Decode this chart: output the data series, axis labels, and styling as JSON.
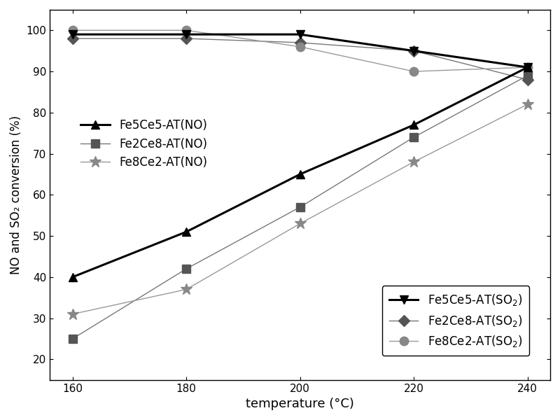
{
  "temperature": [
    160,
    180,
    200,
    220,
    240
  ],
  "Fe5Ce5_NO": [
    40,
    51,
    65,
    77,
    91
  ],
  "Fe2Ce8_NO": [
    25,
    42,
    57,
    74,
    89
  ],
  "Fe8Ce2_NO": [
    31,
    37,
    53,
    68,
    82
  ],
  "Fe5Ce5_SO2": [
    99,
    99,
    99,
    95,
    91
  ],
  "Fe2Ce8_SO2": [
    98,
    98,
    97,
    95,
    88
  ],
  "Fe8Ce2_SO2": [
    100,
    100,
    96,
    90,
    91
  ],
  "xlabel": "temperature (°C)",
  "ylabel": "NO and SO₂ conversion (%)",
  "ylim": [
    15,
    105
  ],
  "yticks": [
    20,
    30,
    40,
    50,
    60,
    70,
    80,
    90,
    100
  ],
  "xticks": [
    160,
    180,
    200,
    220,
    240
  ],
  "legend1_labels": [
    "Fe5Ce5-AT(NO)",
    "Fe2Ce8-AT(NO)",
    "Fe8Ce2-AT(NO)"
  ],
  "legend2_labels": [
    "Fe5Ce5-AT(SO$_2$)",
    "Fe2Ce8-AT(SO$_2$)",
    "Fe8Ce2-AT(SO$_2$)"
  ],
  "figsize": [
    8.0,
    6.0
  ],
  "dpi": 100
}
